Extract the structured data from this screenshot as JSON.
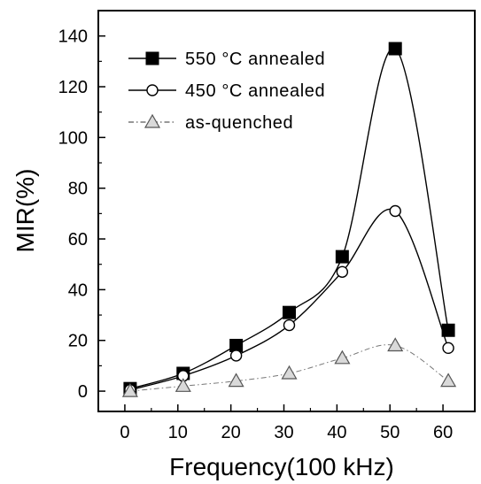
{
  "chart_data": {
    "type": "line",
    "xlabel": "Frequency(100 kHz)",
    "ylabel": "MIR(%)",
    "xlim": [
      -5,
      66
    ],
    "ylim": [
      -8,
      150
    ],
    "xticks": [
      0,
      10,
      20,
      30,
      40,
      50,
      60
    ],
    "yticks": [
      0,
      20,
      40,
      60,
      80,
      100,
      120,
      140
    ],
    "grid": false,
    "legend_position": "top-left",
    "series": [
      {
        "name": "550 °C annealed",
        "marker": "filled-square",
        "line_style": "solid",
        "color": "#000000",
        "x": [
          1,
          11,
          21,
          31,
          41,
          51,
          61
        ],
        "y": [
          1,
          7,
          18,
          31,
          53,
          135,
          24
        ]
      },
      {
        "name": "450 °C annealed",
        "marker": "open-circle",
        "line_style": "solid",
        "color": "#000000",
        "x": [
          1,
          11,
          21,
          31,
          41,
          51,
          61
        ],
        "y": [
          0.5,
          6,
          14,
          26,
          47,
          71,
          17
        ]
      },
      {
        "name": "as-quenched",
        "marker": "open-triangle",
        "line_style": "dash-dot",
        "color": "#777777",
        "x": [
          1,
          11,
          21,
          31,
          41,
          51,
          61
        ],
        "y": [
          0,
          2,
          4,
          7,
          13,
          18,
          4
        ]
      }
    ]
  }
}
